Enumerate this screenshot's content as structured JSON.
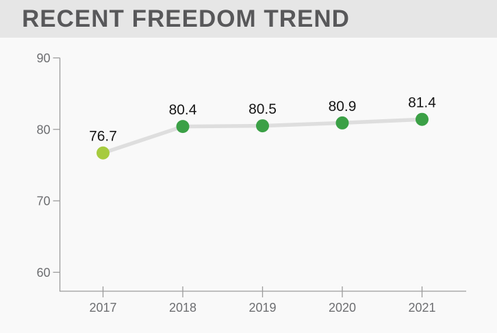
{
  "header": {
    "title": "RECENT FREEDOM TREND"
  },
  "colors": {
    "page_bg": "#f9f9f9",
    "band_bg": "#e6e6e6",
    "title": "#58585a",
    "axis": "#9b9b9b",
    "tick_label": "#6d6e71",
    "line": "#dedede",
    "data_label": "#161616",
    "points": [
      "#a6cb3f",
      "#3ba046",
      "#3ba046",
      "#3ba046",
      "#3ba046"
    ]
  },
  "chart_data": {
    "type": "line",
    "title": "RECENT FREEDOM TREND",
    "categories": [
      "2017",
      "2018",
      "2019",
      "2020",
      "2021"
    ],
    "values": [
      76.7,
      80.4,
      80.5,
      80.9,
      81.4
    ],
    "point_labels": [
      "76.7",
      "80.4",
      "80.5",
      "80.9",
      "81.4"
    ],
    "y_ticks": [
      90,
      80,
      70,
      60
    ],
    "ylim": [
      60,
      90
    ],
    "xlabel": "",
    "ylabel": "",
    "grid": false,
    "legend": false
  }
}
